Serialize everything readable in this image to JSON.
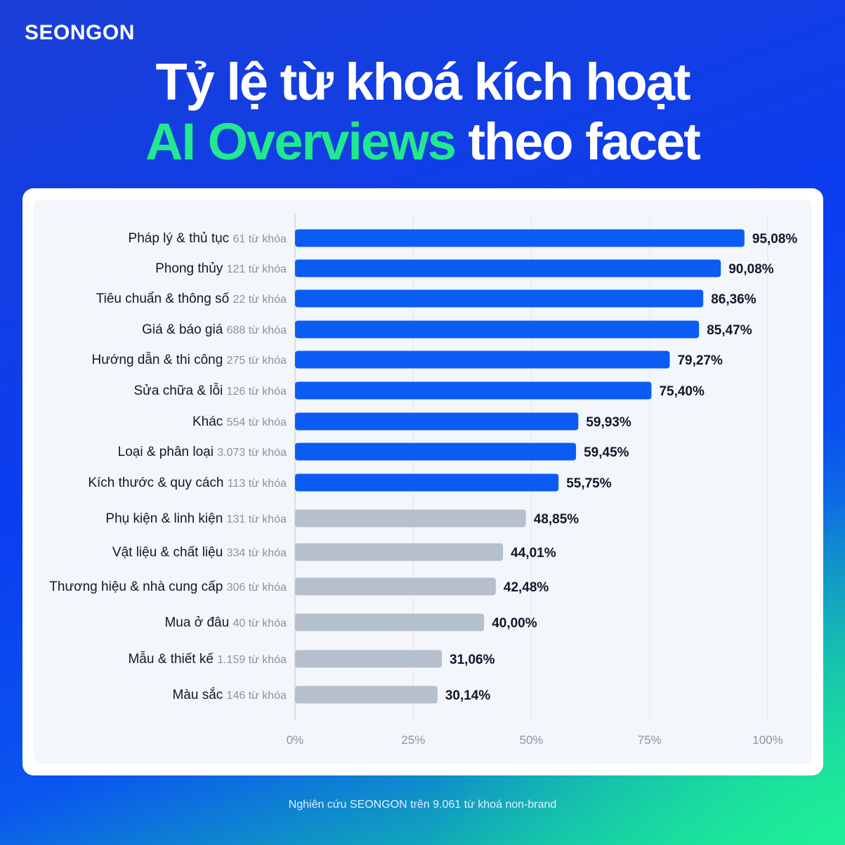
{
  "brand": "SEONGON",
  "title": {
    "line1": "Tỷ lệ từ khoá kích hoạt",
    "line2_accent": "AI Overviews",
    "line2_rest": " theo facet"
  },
  "footnote": "Nghiên cứu SEONGON trên 9.061 từ khoá non-brand",
  "colors": {
    "highlight_bar": "#0b5cf5",
    "muted_bar": "#b6bfcc",
    "accent": "#22e88f",
    "label": "#111827",
    "count": "#8b93a1"
  },
  "chart_data": {
    "type": "bar",
    "orientation": "horizontal",
    "categories": [
      "Pháp lý & thủ tục",
      "Phong thủy",
      "Tiêu chuẩn & thông số",
      "Giá & báo giá",
      "Hướng dẫn & thi công",
      "Sửa chữa & lỗi",
      "Khác",
      "Loại & phân loại",
      "Kích thước & quy cách",
      "Phụ kiện & linh kiện",
      "Vật liệu & chất liệu",
      "Thương hiệu & nhà cung cấp",
      "Mua ở đâu",
      "Mẫu & thiết kế",
      "Màu sắc"
    ],
    "counts": [
      "61 từ khóa",
      "121 từ khóa",
      "22 từ khóa",
      "688 từ khóa",
      "275 từ khóa",
      "126 từ khóa",
      "554 từ khóa",
      "3.073 từ khóa",
      "113 từ khóa",
      "131 từ khóa",
      "334 từ khóa",
      "306 từ khóa",
      "40 từ khóa",
      "1.159 từ khóa",
      "146 từ khóa"
    ],
    "values": [
      95.08,
      90.08,
      86.36,
      85.47,
      79.27,
      75.4,
      59.93,
      59.45,
      55.75,
      48.85,
      44.01,
      42.48,
      40.0,
      31.06,
      30.14
    ],
    "value_labels": [
      "95,08%",
      "90,08%",
      "86,36%",
      "85,47%",
      "79,27%",
      "75,40%",
      "59,93%",
      "59,45%",
      "55,75%",
      "48,85%",
      "44,01%",
      "42,48%",
      "40,00%",
      "31,06%",
      "30,14%"
    ],
    "highlight_threshold": 50,
    "xlim": [
      0,
      100
    ],
    "x_ticks": [
      "0%",
      "25%",
      "50%",
      "75%",
      "100%"
    ],
    "grid": true
  }
}
